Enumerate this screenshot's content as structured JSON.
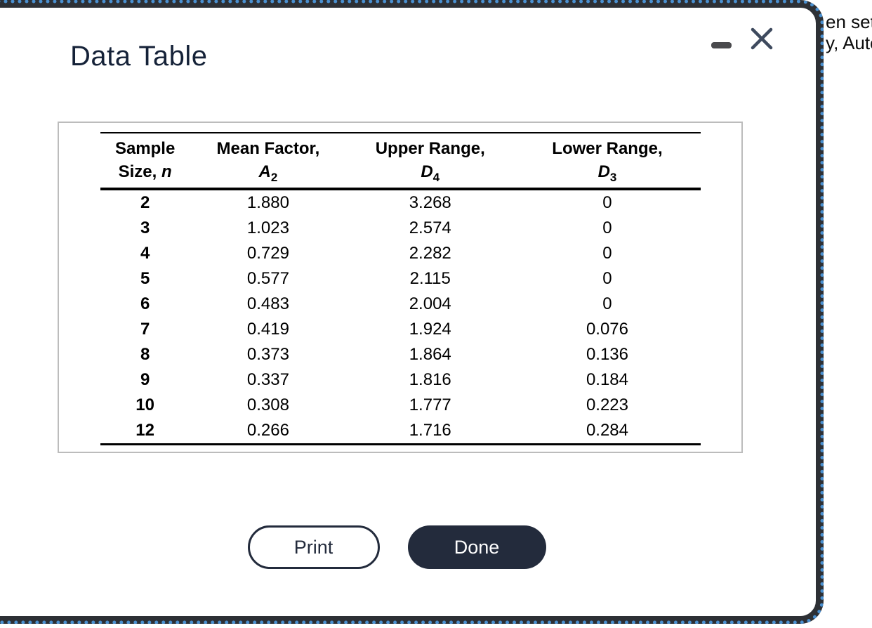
{
  "window": {
    "title": "Data Table",
    "controls": {
      "minimize": "minimize-icon",
      "close": "close-icon"
    }
  },
  "background": {
    "clipped_line1": "en set",
    "clipped_line2": "y, Auto"
  },
  "table": {
    "columns": [
      {
        "line1": "Sample",
        "line2_prefix": "Size, ",
        "symbol": "n",
        "subscript": "",
        "class": "col-sample"
      },
      {
        "line1": "Mean Factor,",
        "line2_prefix": "",
        "symbol": "A",
        "subscript": "2",
        "class": "col-mean"
      },
      {
        "line1": "Upper Range,",
        "line2_prefix": "",
        "symbol": "D",
        "subscript": "4",
        "class": "col-upper"
      },
      {
        "line1": "Lower Range,",
        "line2_prefix": "",
        "symbol": "D",
        "subscript": "3",
        "class": "col-lower"
      }
    ],
    "rows": [
      [
        "2",
        "1.880",
        "3.268",
        "0"
      ],
      [
        "3",
        "1.023",
        "2.574",
        "0"
      ],
      [
        "4",
        "0.729",
        "2.282",
        "0"
      ],
      [
        "5",
        "0.577",
        "2.115",
        "0"
      ],
      [
        "6",
        "0.483",
        "2.004",
        "0"
      ],
      [
        "7",
        "0.419",
        "1.924",
        "0.076"
      ],
      [
        "8",
        "0.373",
        "1.864",
        "0.136"
      ],
      [
        "9",
        "0.337",
        "1.816",
        "0.184"
      ],
      [
        "10",
        "0.308",
        "1.777",
        "0.223"
      ],
      [
        "12",
        "0.266",
        "1.716",
        "0.284"
      ]
    ]
  },
  "buttons": {
    "print_label": "Print",
    "done_label": "Done"
  },
  "colors": {
    "accent_blue": "#4a90d0",
    "window_border": "#2d3035",
    "navy": "#232b3c",
    "title_navy": "#152238",
    "panel_border": "#bcbcbc",
    "close_icon": "#3e4a5e",
    "minimize_icon": "#4a4a4d"
  }
}
